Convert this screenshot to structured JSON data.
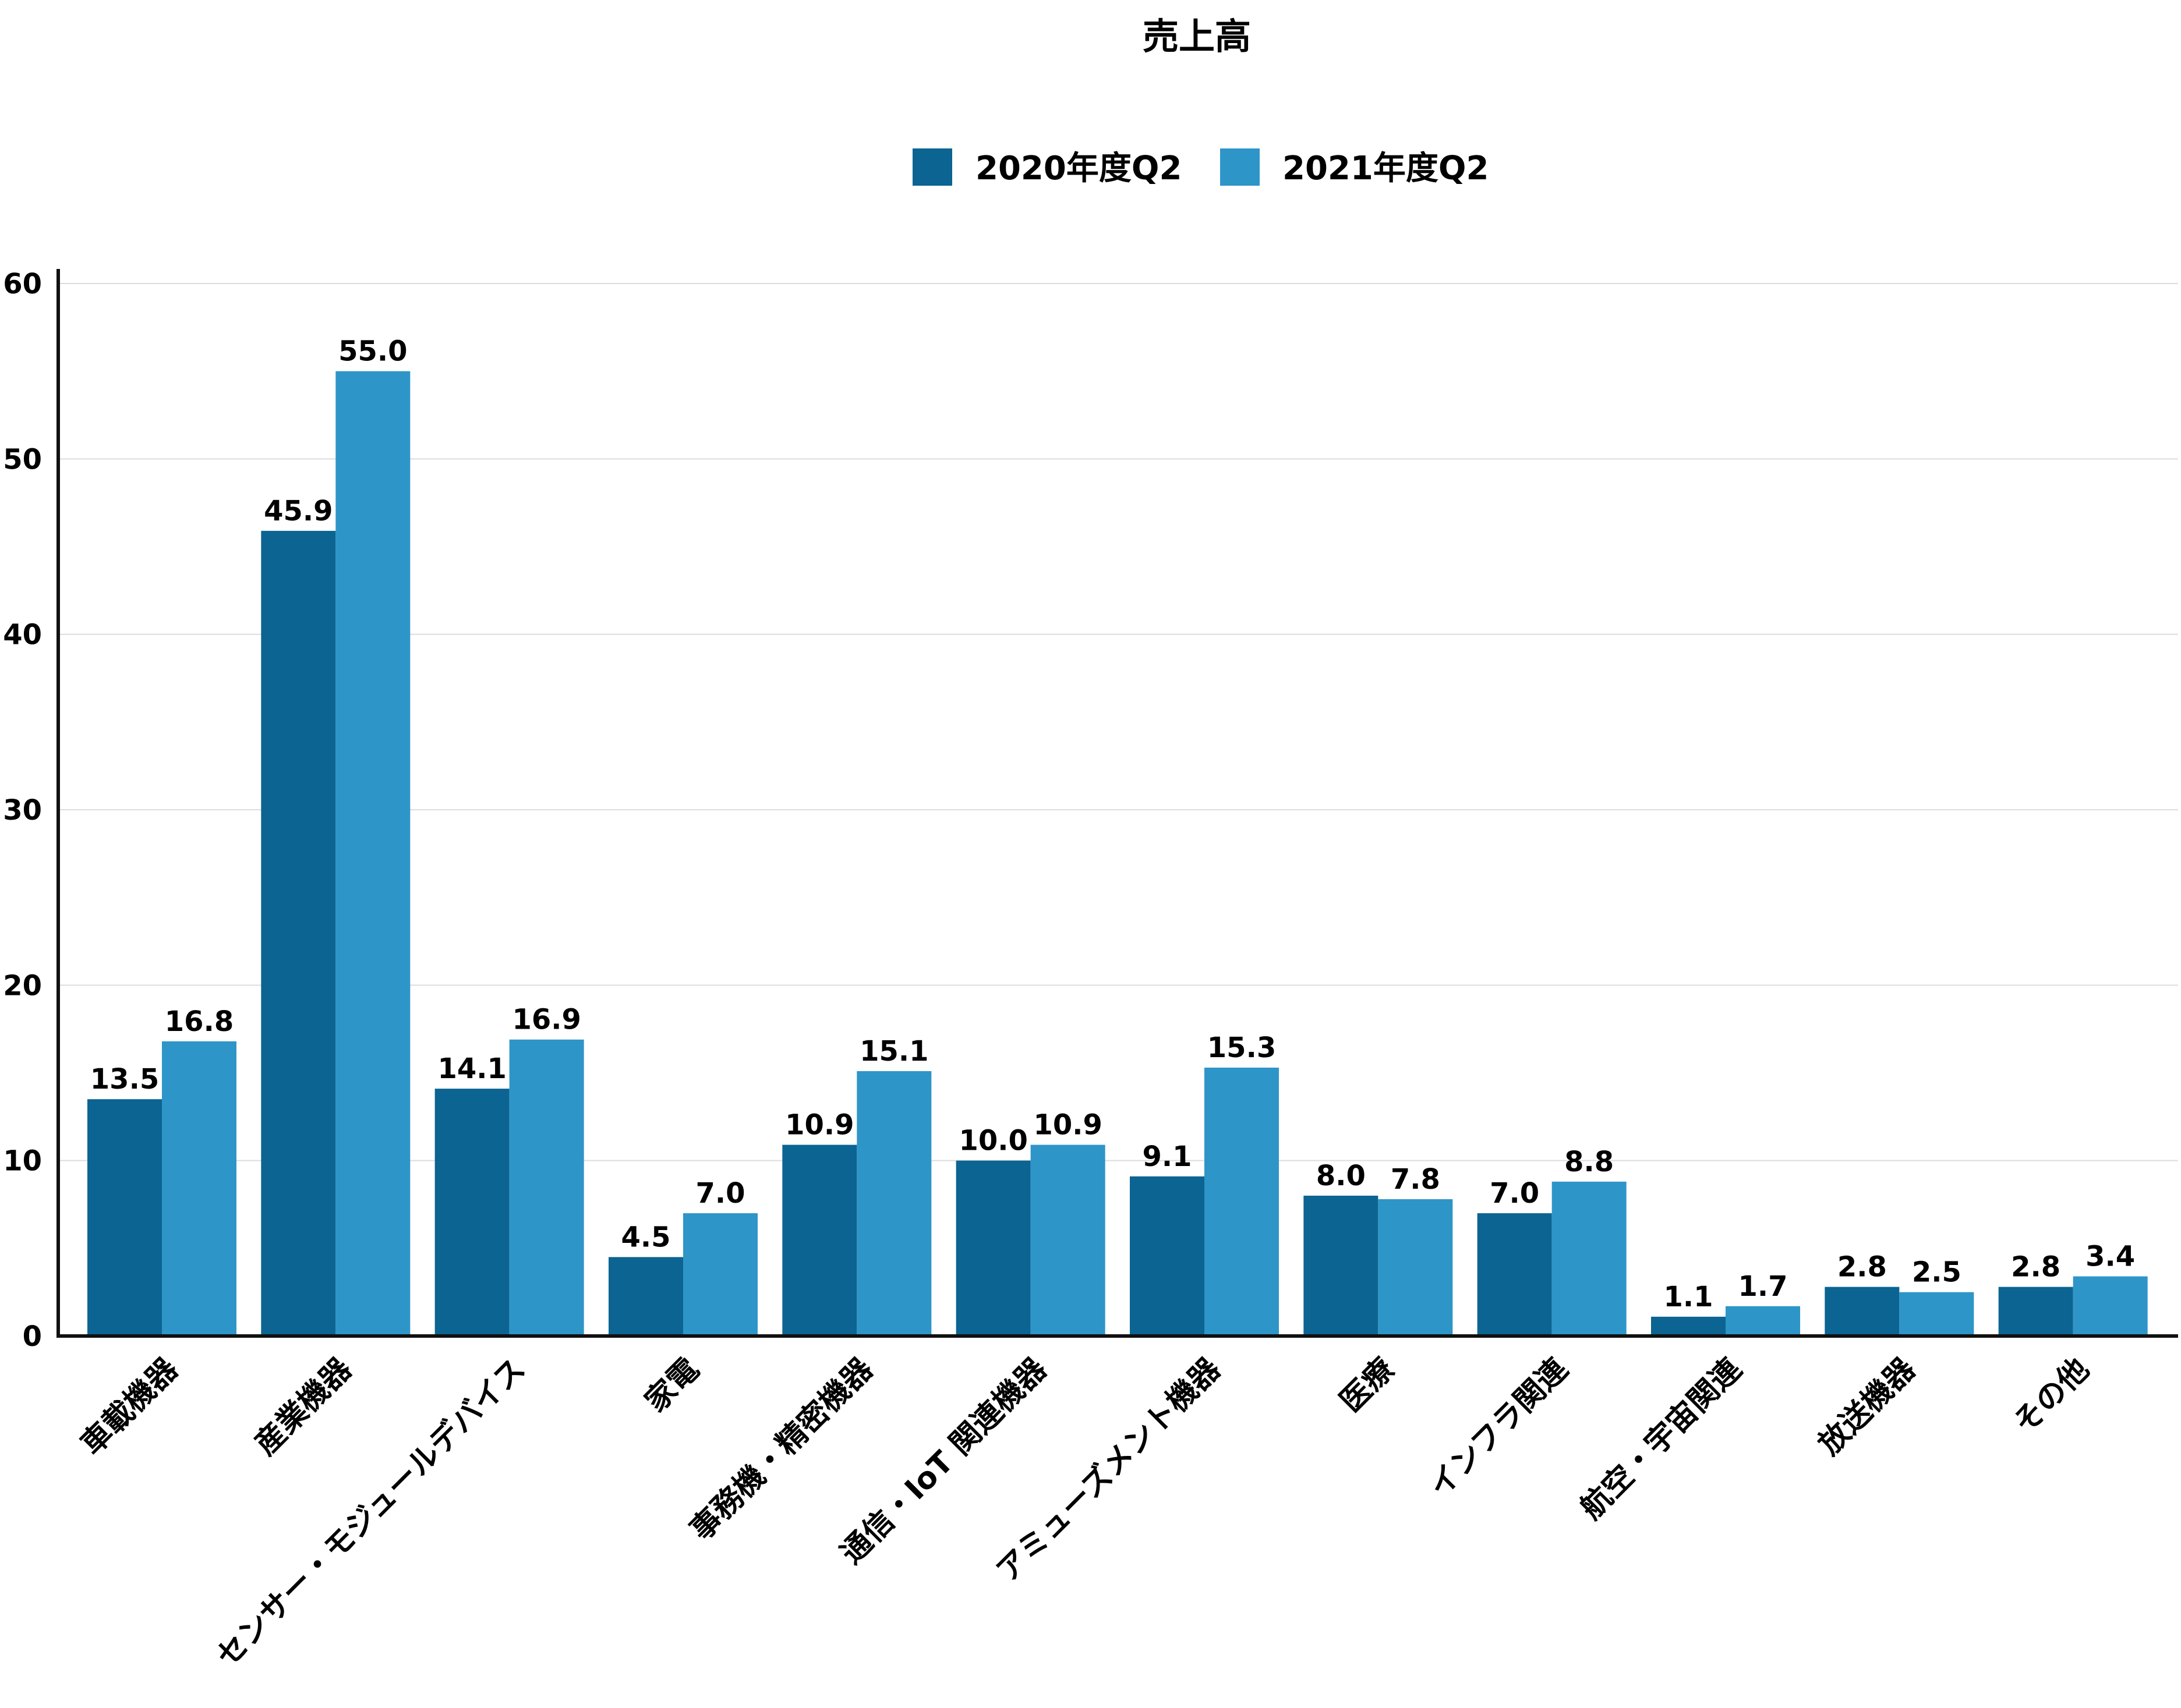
{
  "chart_data": {
    "type": "bar",
    "title": "売上高",
    "xlabel": "",
    "ylabel": "",
    "ylim": [
      0,
      60
    ],
    "yticks": [
      0,
      10,
      20,
      30,
      40,
      50,
      60
    ],
    "grid": true,
    "legend_position": "top-center",
    "categories": [
      "車載機器",
      "産業機器",
      "センサー・モジュールデバイス",
      "家電",
      "事務機・精密機器",
      "通信・IoT 関連機器",
      "アミューズメント機器",
      "医療",
      "インフラ関連",
      "航空・宇宙関連",
      "放送機器",
      "その他"
    ],
    "series": [
      {
        "name": "2020年度Q2",
        "color": "#0b6491",
        "values": [
          13.5,
          45.9,
          14.1,
          4.5,
          10.9,
          10.0,
          9.1,
          8.0,
          7.0,
          1.1,
          2.8,
          2.8
        ],
        "labels": [
          "13.5",
          "45.9",
          "14.1",
          "4.5",
          "10.9",
          "10.0",
          "9.1",
          "8.0",
          "7.0",
          "1.1",
          "2.8",
          "2.8"
        ]
      },
      {
        "name": "2021年度Q2",
        "color": "#2e95c8",
        "values": [
          16.8,
          55.0,
          16.9,
          7.0,
          15.1,
          10.9,
          15.3,
          7.8,
          8.8,
          1.7,
          2.5,
          3.4
        ],
        "labels": [
          "16.8",
          "55.0",
          "16.9",
          "7.0",
          "15.1",
          "10.9",
          "15.3",
          "7.8",
          "8.8",
          "1.7",
          "2.5",
          "3.4"
        ]
      }
    ]
  }
}
